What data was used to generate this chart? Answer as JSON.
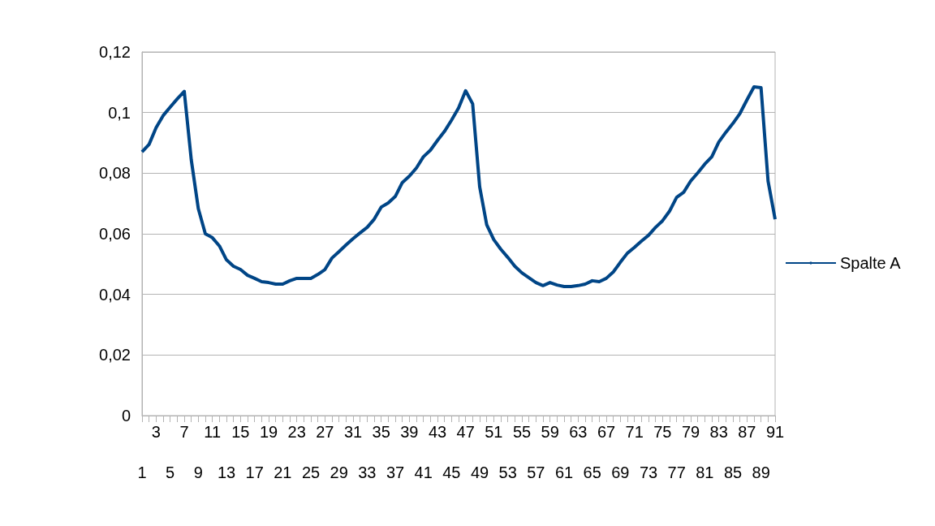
{
  "chart_data": {
    "type": "line",
    "categories": [
      "1",
      null,
      "3",
      null,
      "5",
      null,
      "7",
      null,
      "9",
      null,
      "11",
      null,
      "13",
      null,
      "15",
      null,
      "17",
      null,
      "19",
      null,
      "21",
      null,
      "23",
      null,
      "25",
      null,
      "27",
      null,
      "29",
      null,
      "31",
      null,
      "33",
      null,
      "35",
      null,
      "37",
      null,
      "39",
      null,
      "41",
      null,
      "43",
      null,
      "45",
      null,
      "47",
      null,
      "49",
      null,
      "51",
      null,
      "53",
      null,
      "55",
      null,
      "57",
      null,
      "59",
      null,
      "61",
      null,
      "63",
      null,
      "65",
      null,
      "67",
      null,
      "69",
      null,
      "71",
      null,
      "73",
      null,
      "75",
      null,
      "77",
      null,
      "79",
      null,
      "81",
      null,
      "83",
      null,
      "85",
      null,
      "87",
      null,
      "89",
      null,
      "91"
    ],
    "series": [
      {
        "name": "Spalte A",
        "color": "#004586",
        "values": [
          0.087,
          0.0895,
          0.095,
          0.099,
          0.1018,
          0.1045,
          0.107,
          0.0844,
          0.0683,
          0.06,
          0.0587,
          0.056,
          0.0514,
          0.0493,
          0.0482,
          0.0463,
          0.0453,
          0.0442,
          0.0439,
          0.0434,
          0.0434,
          0.0445,
          0.0453,
          0.0453,
          0.0453,
          0.0466,
          0.0482,
          0.052,
          0.0541,
          0.0563,
          0.0584,
          0.0603,
          0.0621,
          0.0648,
          0.0688,
          0.0702,
          0.0723,
          0.0769,
          0.079,
          0.0817,
          0.0854,
          0.0876,
          0.0908,
          0.0938,
          0.0975,
          0.1015,
          0.1072,
          0.1029,
          0.0755,
          0.063,
          0.0581,
          0.0549,
          0.0522,
          0.0493,
          0.0471,
          0.0455,
          0.0439,
          0.0429,
          0.0439,
          0.0431,
          0.0426,
          0.0426,
          0.0429,
          0.0434,
          0.0445,
          0.0442,
          0.0453,
          0.0474,
          0.0506,
          0.0536,
          0.0555,
          0.0576,
          0.0595,
          0.0621,
          0.0643,
          0.0675,
          0.072,
          0.0737,
          0.0774,
          0.0801,
          0.083,
          0.0854,
          0.0903,
          0.0935,
          0.0964,
          0.0997,
          0.1042,
          0.1085,
          0.1082,
          0.0774,
          0.0648
        ]
      }
    ],
    "ylim": [
      0,
      0.12
    ],
    "yticks": [
      0,
      {
        "value": 0.02,
        "label": "0,02"
      },
      {
        "value": 0.04,
        "label": "0,04"
      },
      {
        "value": 0.06,
        "label": "0,06"
      },
      {
        "value": 0.08,
        "label": "0,08"
      },
      {
        "value": 0.1,
        "label": "0,1"
      },
      {
        "value": 0.12,
        "label": "0,12"
      }
    ],
    "grid": "y",
    "legend": "right"
  }
}
